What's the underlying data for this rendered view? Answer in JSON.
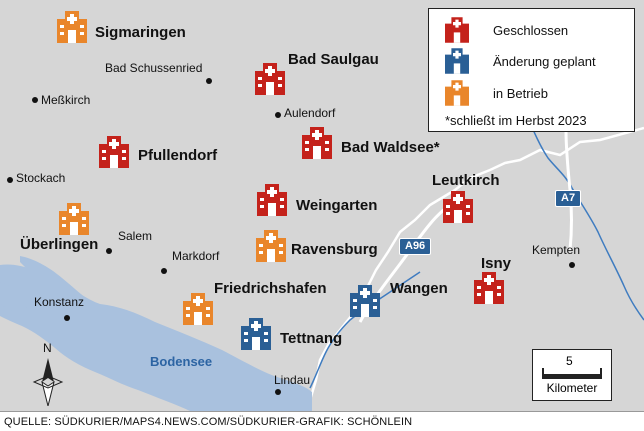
{
  "colors": {
    "land": "#d6d6d6",
    "lake": "#a9c1de",
    "border": "#ffffff",
    "river": "#3f7cc0",
    "closed": "#c4221b",
    "planned": "#2a5f95",
    "active": "#e9862b"
  },
  "legend": {
    "items": [
      {
        "status": "closed",
        "icon": "red-hospital-icon",
        "label": "Geschlossen"
      },
      {
        "status": "planned",
        "icon": "blue-hospital-icon",
        "label": "Änderung geplant"
      },
      {
        "status": "active",
        "icon": "orange-hospital-icon",
        "label": "in Betrieb"
      }
    ],
    "note": "*schließt im Herbst 2023"
  },
  "hospitals": [
    {
      "name": "Sigmaringen",
      "status": "active"
    },
    {
      "name": "Bad Saulgau",
      "status": "closed"
    },
    {
      "name": "Pfullendorf",
      "status": "closed"
    },
    {
      "name": "Bad Waldsee*",
      "status": "closed"
    },
    {
      "name": "Weingarten",
      "status": "closed"
    },
    {
      "name": "Leutkirch",
      "status": "closed"
    },
    {
      "name": "Überlingen",
      "status": "active"
    },
    {
      "name": "Ravensburg",
      "status": "active"
    },
    {
      "name": "Friedrichshafen",
      "status": "active"
    },
    {
      "name": "Wangen",
      "status": "planned"
    },
    {
      "name": "Isny",
      "status": "closed"
    },
    {
      "name": "Tettnang",
      "status": "planned"
    }
  ],
  "towns": [
    "Bad Schussenried",
    "Meßkirch",
    "Aulendorf",
    "Stockach",
    "Salem",
    "Markdorf",
    "Kempten",
    "Konstanz",
    "Lindau"
  ],
  "lake": "Bodensee",
  "roads": [
    "A96",
    "A7"
  ],
  "north": "N",
  "scale": {
    "value": "5",
    "unit": "Kilometer"
  },
  "source": "QUELLE: SÜDKURIER/MAPS4.NEWS.COM/SÜDKURIER-GRAFIK: SCHÖNLEIN"
}
